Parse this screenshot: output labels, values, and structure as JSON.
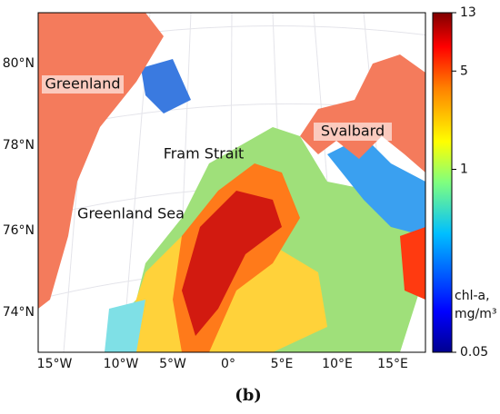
{
  "map": {
    "lat_labels": [
      "80°N",
      "78°N",
      "76°N",
      "74°N"
    ],
    "lon_labels": [
      "15°W",
      "10°W",
      "5°W",
      "0°",
      "5°E",
      "10°E",
      "15°E"
    ],
    "places": [
      "Greenland",
      "Svalbard",
      "Fram Strait",
      "Greenland Sea"
    ]
  },
  "colorbar": {
    "lim": [
      0.05,
      13
    ],
    "ticks": [
      13,
      5,
      1,
      0.05
    ],
    "log": true,
    "label": [
      "chl-a,",
      "mg/m³"
    ]
  },
  "caption": "(b)"
}
